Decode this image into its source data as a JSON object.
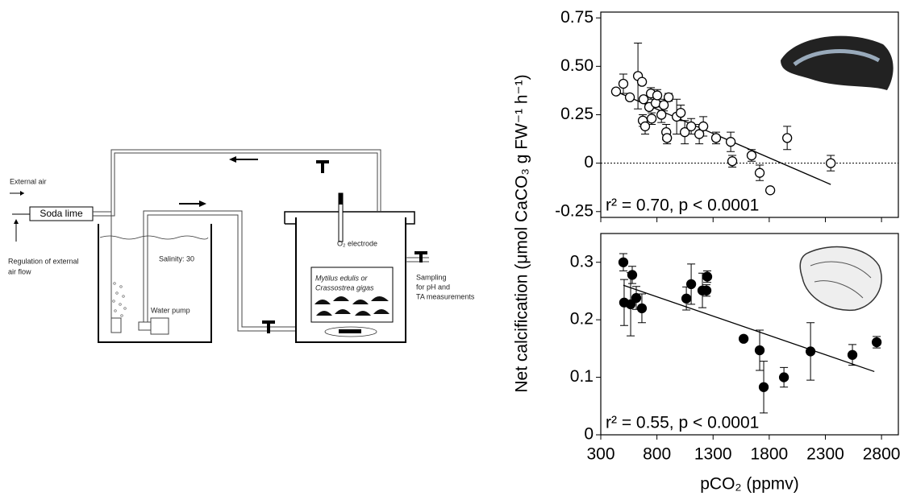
{
  "diagram": {
    "external_air": "External air",
    "soda_lime": "Soda lime",
    "regulation": [
      "Regulation of external",
      "air flow"
    ],
    "salinity": "Salinity: 30",
    "water_pump": "Water pump",
    "electrode": "O₂ electrode",
    "species": [
      "Mytilus edulis or",
      "Crassostrea gigas"
    ],
    "sampling": [
      "Sampling",
      "for pH and",
      "TA measurements"
    ]
  },
  "chart_data": [
    {
      "type": "scatter",
      "ylabel": "Net calcification (μmol CaCO₃ g FW⁻¹ h⁻¹)",
      "annotation": "r² = 0.70, p < 0.0001",
      "marker_fill": "#ffffff",
      "x": [
        436,
        501,
        559,
        631,
        667,
        681,
        674,
        695,
        731,
        746,
        753,
        789,
        803,
        840,
        861,
        883,
        890,
        904,
        976,
        1012,
        1048,
        1105,
        1177,
        1213,
        1327,
        1457,
        1471,
        1643,
        1715,
        1809,
        1960,
        2348
      ],
      "values": [
        0.37,
        0.41,
        0.34,
        0.45,
        0.42,
        0.33,
        0.22,
        0.19,
        0.29,
        0.36,
        0.23,
        0.31,
        0.35,
        0.25,
        0.3,
        0.16,
        0.13,
        0.34,
        0.24,
        0.26,
        0.16,
        0.19,
        0.15,
        0.19,
        0.13,
        0.11,
        0.01,
        0.04,
        -0.05,
        -0.14,
        0.13,
        0.0
      ],
      "errors": [
        null,
        0.05,
        null,
        0.17,
        null,
        null,
        0.03,
        0.04,
        null,
        0.03,
        0.03,
        null,
        0.03,
        0.04,
        0.03,
        0.04,
        0.03,
        0.02,
        0.09,
        0.04,
        0.06,
        0.04,
        0.05,
        0.05,
        0.03,
        0.05,
        0.03,
        0.03,
        0.04,
        null,
        0.06,
        0.04
      ],
      "fit_line": {
        "x": [
          436,
          2348
        ],
        "y": [
          0.37,
          -0.11
        ]
      },
      "reference_line": 0,
      "xlim": [
        300,
        2950
      ],
      "xticks": [
        300,
        800,
        1300,
        1800,
        2300,
        2800
      ],
      "ylim": [
        -0.28,
        0.78
      ],
      "yticks": [
        -0.25,
        0,
        0.25,
        {
          "value": 0.5,
          "label": "0.50"
        },
        0.75
      ]
    },
    {
      "type": "scatter",
      "xlabel": "pCO₂ (ppmv)",
      "annotation": "r² = 0.55, p < 0.0001",
      "marker_fill": "#000000",
      "x": [
        501,
        508,
        566,
        580,
        616,
        666,
        1062,
        1105,
        1205,
        1241,
        1248,
        1572,
        1715,
        1751,
        1931,
        2168,
        2541,
        2757
      ],
      "values": [
        0.3,
        0.23,
        0.227,
        0.278,
        0.238,
        0.22,
        0.237,
        0.262,
        0.251,
        0.251,
        0.275,
        0.167,
        0.147,
        0.083,
        0.1,
        0.145,
        0.139,
        0.161
      ],
      "errors": [
        0.015,
        0.04,
        0.055,
        0.015,
        0.02,
        0.025,
        0.02,
        0.035,
        0.03,
        0.01,
        0.01,
        null,
        0.035,
        0.045,
        0.017,
        0.05,
        0.018,
        0.01
      ],
      "fit_line": {
        "x": [
          501,
          2736
        ],
        "y": [
          0.26,
          0.11
        ]
      },
      "xlim": [
        300,
        2950
      ],
      "xticks": [
        300,
        800,
        1300,
        1800,
        2300,
        2800
      ],
      "ylim": [
        0,
        0.35
      ],
      "yticks": [
        0,
        0.1,
        0.2,
        0.3
      ]
    }
  ]
}
